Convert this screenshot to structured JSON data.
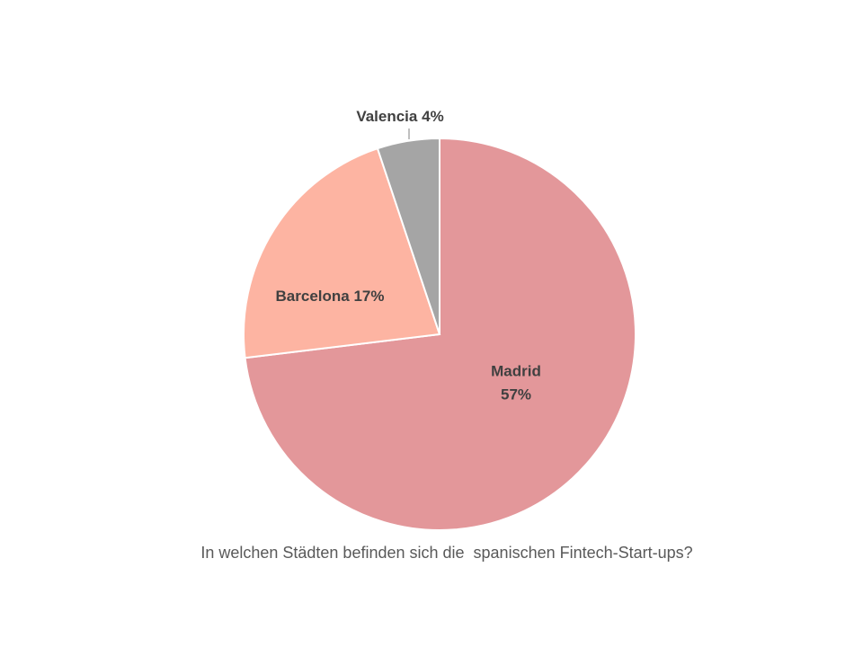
{
  "chart_data": {
    "type": "pie",
    "title": "In welchen Städten befinden sich die  spanischen Fintech-Start-ups?",
    "categories": [
      "Madrid",
      "Barcelona",
      "Valencia"
    ],
    "values": [
      57,
      17,
      4
    ],
    "value_labels": [
      "57%",
      "17%",
      "4%"
    ],
    "colors": [
      "#e3979a",
      "#fdb4a2",
      "#a5a5a5"
    ]
  }
}
